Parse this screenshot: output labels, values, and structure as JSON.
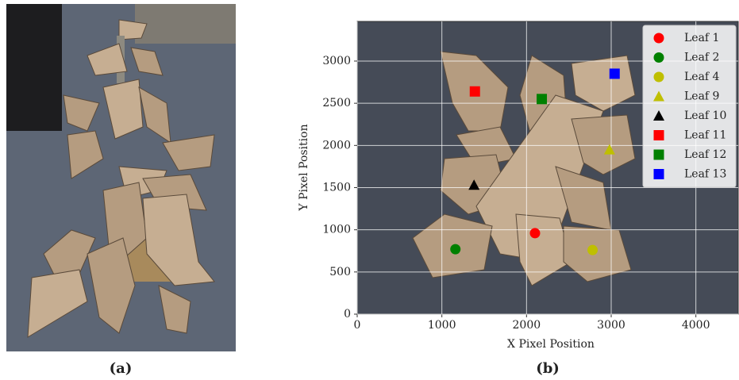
{
  "chart_data": {
    "type": "scatter",
    "x_label": "X Pixel Position",
    "y_label": "Y Pixel Position",
    "xlim": [
      0,
      4500
    ],
    "ylim": [
      0,
      3470
    ],
    "xticks": [
      0,
      1000,
      2000,
      3000,
      4000
    ],
    "yticks": [
      0,
      500,
      1000,
      1500,
      2000,
      2500,
      3000
    ],
    "grid": true,
    "legend": "upper-right",
    "series": [
      {
        "name": "Leaf 1",
        "color": "#ff0000",
        "marker": "circle",
        "x": [
          2100
        ],
        "values": [
          960
        ]
      },
      {
        "name": "Leaf 2",
        "color": "#008000",
        "marker": "circle",
        "x": [
          1160
        ],
        "values": [
          770
        ]
      },
      {
        "name": "Leaf 4",
        "color": "#bfbf00",
        "marker": "circle",
        "x": [
          2780
        ],
        "values": [
          760
        ]
      },
      {
        "name": "Leaf 9",
        "color": "#bfbf00",
        "marker": "triangle",
        "x": [
          2980
        ],
        "values": [
          1950
        ]
      },
      {
        "name": "Leaf 10",
        "color": "#000000",
        "marker": "triangle",
        "x": [
          1380
        ],
        "values": [
          1530
        ]
      },
      {
        "name": "Leaf 11",
        "color": "#ff0000",
        "marker": "square",
        "x": [
          1390
        ],
        "values": [
          2640
        ]
      },
      {
        "name": "Leaf 12",
        "color": "#008000",
        "marker": "square",
        "x": [
          2180
        ],
        "values": [
          2550
        ]
      },
      {
        "name": "Leaf 13",
        "color": "#0000ff",
        "marker": "square",
        "x": [
          3040
        ],
        "values": [
          2850
        ]
      }
    ],
    "captions": [
      "(a)",
      "(b)"
    ]
  }
}
